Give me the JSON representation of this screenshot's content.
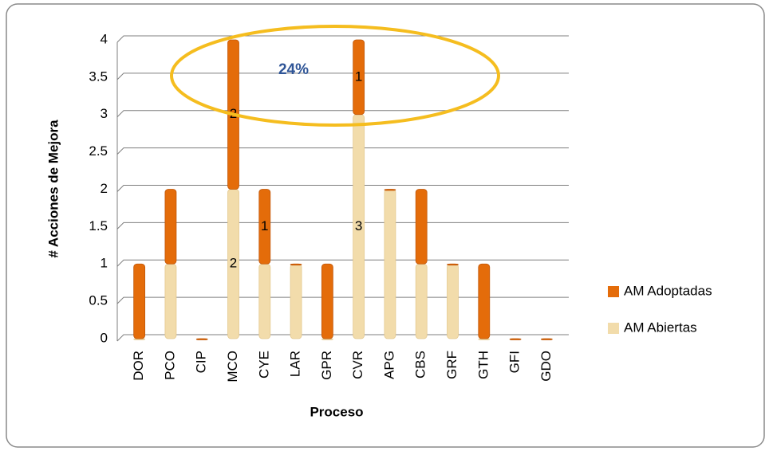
{
  "chart_data": {
    "type": "bar",
    "stacked": true,
    "y_label": "# Acciones de Mejora",
    "x_label": "Proceso",
    "categories": [
      "DOR",
      "PCO",
      "CIP",
      "MCO",
      "CYE",
      "LAR",
      "GPR",
      "CVR",
      "APG",
      "CBS",
      "GRF",
      "GTH",
      "GFI",
      "GDO"
    ],
    "series": [
      {
        "name": "AM Abiertas",
        "color": "#f2dcab",
        "values": [
          0,
          1,
          0,
          2,
          1,
          1,
          0,
          3,
          2,
          1,
          1,
          0,
          0,
          0
        ],
        "value_labels": [
          null,
          null,
          null,
          "2",
          null,
          null,
          null,
          "3",
          null,
          null,
          null,
          null,
          null,
          null
        ]
      },
      {
        "name": "AM Adoptadas",
        "color": "#e46c0a",
        "values": [
          1,
          1,
          0,
          2,
          1,
          0,
          1,
          1,
          0,
          1,
          0,
          1,
          0,
          0
        ],
        "value_labels": [
          null,
          null,
          null,
          "2",
          "1",
          null,
          null,
          "1",
          null,
          null,
          null,
          null,
          null,
          null
        ]
      }
    ],
    "ylim": [
      0,
      4
    ],
    "yticks": [
      0,
      0.5,
      1,
      1.5,
      2,
      2.5,
      3,
      3.5,
      4
    ],
    "grid": true,
    "legend": "right",
    "annotations": [
      "24%"
    ]
  }
}
